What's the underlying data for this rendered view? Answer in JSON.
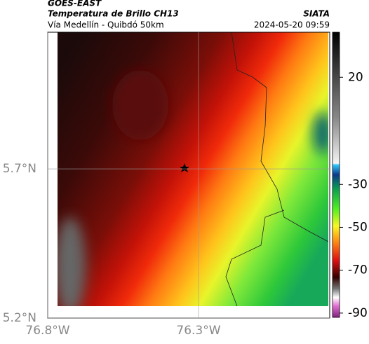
{
  "header": {
    "source": "GOES-EAST",
    "title": "Temperatura de Brillo CH13",
    "subtitle": "Vía Medellín - Quibdó 50km",
    "org": "SIATA",
    "timestamp": "2024-05-20 09:59"
  },
  "map": {
    "xlim": [
      -76.8,
      -75.865
    ],
    "ylim": [
      5.2,
      6.158
    ],
    "xticks": [
      {
        "value": -76.8,
        "label": "76.8°W"
      },
      {
        "value": -76.3,
        "label": "76.3°W"
      }
    ],
    "yticks": [
      {
        "value": 5.7,
        "label": "5.7°N"
      },
      {
        "value": 5.2,
        "label": "5.2°N"
      }
    ]
  },
  "colorbar": {
    "lim": [
      -92,
      41
    ],
    "ticks": [
      20,
      -30,
      -50,
      -70,
      -90
    ]
  }
}
